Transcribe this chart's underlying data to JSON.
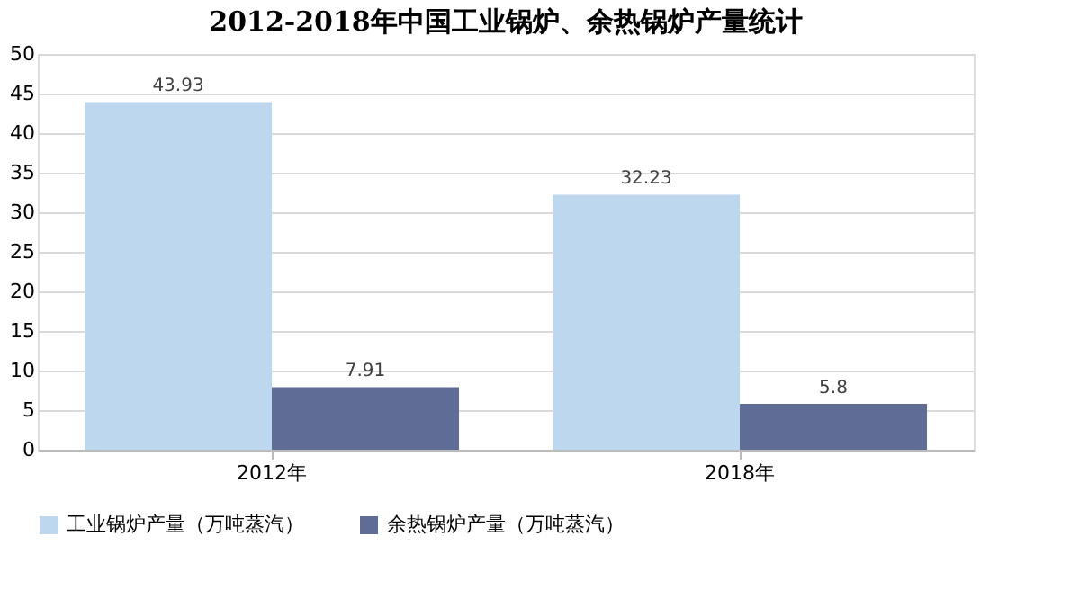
{
  "chart_data": {
    "type": "bar",
    "title": "2012-2018年中国工业锅炉、余热锅炉产量统计",
    "categories": [
      "2012年",
      "2018年"
    ],
    "series": [
      {
        "name": "工业锅炉产量（万吨蒸汽）",
        "color": "#bdd7ee",
        "values": [
          43.93,
          32.23
        ]
      },
      {
        "name": "余热锅炉产量（万吨蒸汽）",
        "color": "#5f6c96",
        "values": [
          7.91,
          5.8
        ]
      }
    ],
    "ylim": [
      0,
      50
    ],
    "yticks": [
      0,
      5,
      10,
      15,
      20,
      25,
      30,
      35,
      40,
      45,
      50
    ],
    "grid": "y",
    "legend": "bottom",
    "data_labels": true
  }
}
